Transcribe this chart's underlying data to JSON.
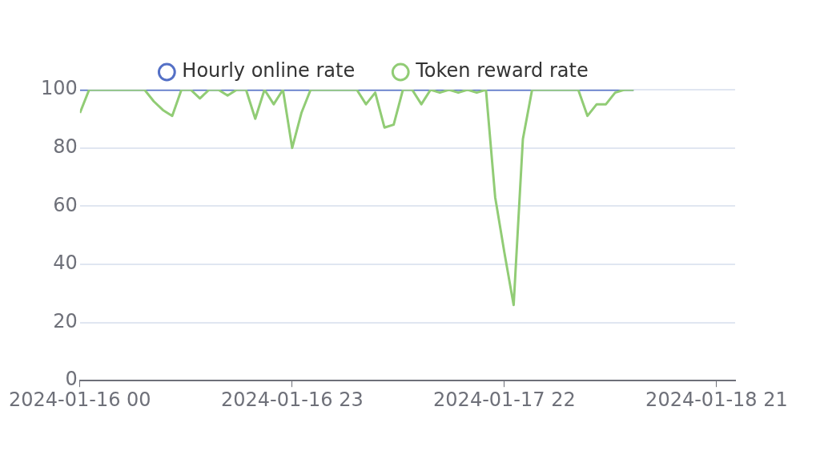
{
  "chart_data": {
    "type": "line",
    "legend": "top",
    "grid": "y",
    "line_style": "solid",
    "xlim": [
      "2024-01-16T00:00",
      "2024-01-18T23:00"
    ],
    "xticks": [
      {
        "value": "2024-01-16T00:00",
        "label": "2024-01-16 00"
      },
      {
        "value": "2024-01-16T23:00",
        "label": "2024-01-16 23"
      },
      {
        "value": "2024-01-17T22:00",
        "label": "2024-01-17 22"
      },
      {
        "value": "2024-01-18T21:00",
        "label": "2024-01-18 21"
      }
    ],
    "ylim": [
      0,
      100
    ],
    "yticks": [
      0,
      20,
      40,
      60,
      80,
      100
    ],
    "x": [
      "2024-01-16T00:00",
      "2024-01-16T01:00",
      "2024-01-16T02:00",
      "2024-01-16T03:00",
      "2024-01-16T04:00",
      "2024-01-16T05:00",
      "2024-01-16T06:00",
      "2024-01-16T07:00",
      "2024-01-16T08:00",
      "2024-01-16T09:00",
      "2024-01-16T10:00",
      "2024-01-16T11:00",
      "2024-01-16T12:00",
      "2024-01-16T13:00",
      "2024-01-16T14:00",
      "2024-01-16T15:00",
      "2024-01-16T16:00",
      "2024-01-16T17:00",
      "2024-01-16T18:00",
      "2024-01-16T19:00",
      "2024-01-16T20:00",
      "2024-01-16T21:00",
      "2024-01-16T22:00",
      "2024-01-16T23:00",
      "2024-01-17T00:00",
      "2024-01-17T01:00",
      "2024-01-17T02:00",
      "2024-01-17T03:00",
      "2024-01-17T04:00",
      "2024-01-17T05:00",
      "2024-01-17T06:00",
      "2024-01-17T07:00",
      "2024-01-17T08:00",
      "2024-01-17T09:00",
      "2024-01-17T10:00",
      "2024-01-17T11:00",
      "2024-01-17T12:00",
      "2024-01-17T13:00",
      "2024-01-17T14:00",
      "2024-01-17T15:00",
      "2024-01-17T16:00",
      "2024-01-17T17:00",
      "2024-01-17T18:00",
      "2024-01-17T19:00",
      "2024-01-17T20:00",
      "2024-01-17T21:00",
      "2024-01-17T22:00",
      "2024-01-17T23:00",
      "2024-01-18T00:00",
      "2024-01-18T01:00",
      "2024-01-18T02:00",
      "2024-01-18T03:00",
      "2024-01-18T04:00",
      "2024-01-18T05:00",
      "2024-01-18T06:00",
      "2024-01-18T07:00",
      "2024-01-18T08:00",
      "2024-01-18T09:00",
      "2024-01-18T10:00",
      "2024-01-18T11:00",
      "2024-01-18T12:00"
    ],
    "series": [
      {
        "name": "Hourly online rate",
        "color": "#5470c6",
        "values": [
          100,
          100,
          100,
          100,
          100,
          100,
          100,
          100,
          100,
          100,
          100,
          100,
          100,
          100,
          100,
          100,
          100,
          100,
          100,
          100,
          100,
          100,
          100,
          100,
          100,
          100,
          100,
          100,
          100,
          100,
          100,
          100,
          100,
          100,
          100,
          100,
          100,
          100,
          100,
          100,
          100,
          100,
          100,
          100,
          100,
          100,
          100,
          100,
          100,
          100,
          100,
          100,
          100,
          100,
          100,
          100,
          100,
          100,
          100,
          100,
          100
        ]
      },
      {
        "name": "Token reward rate",
        "color": "#91cc75",
        "values": [
          92,
          100,
          100,
          100,
          100,
          100,
          100,
          100,
          96,
          93,
          91,
          100,
          100,
          97,
          100,
          100,
          98,
          100,
          100,
          90,
          100,
          95,
          100,
          80,
          92,
          100,
          100,
          100,
          100,
          100,
          100,
          95,
          99,
          87,
          88,
          100,
          100,
          95,
          100,
          99,
          100,
          99,
          100,
          99,
          100,
          63,
          44,
          26,
          83,
          100,
          100,
          100,
          100,
          100,
          100,
          91,
          95,
          95,
          99,
          100,
          100
        ]
      }
    ]
  }
}
